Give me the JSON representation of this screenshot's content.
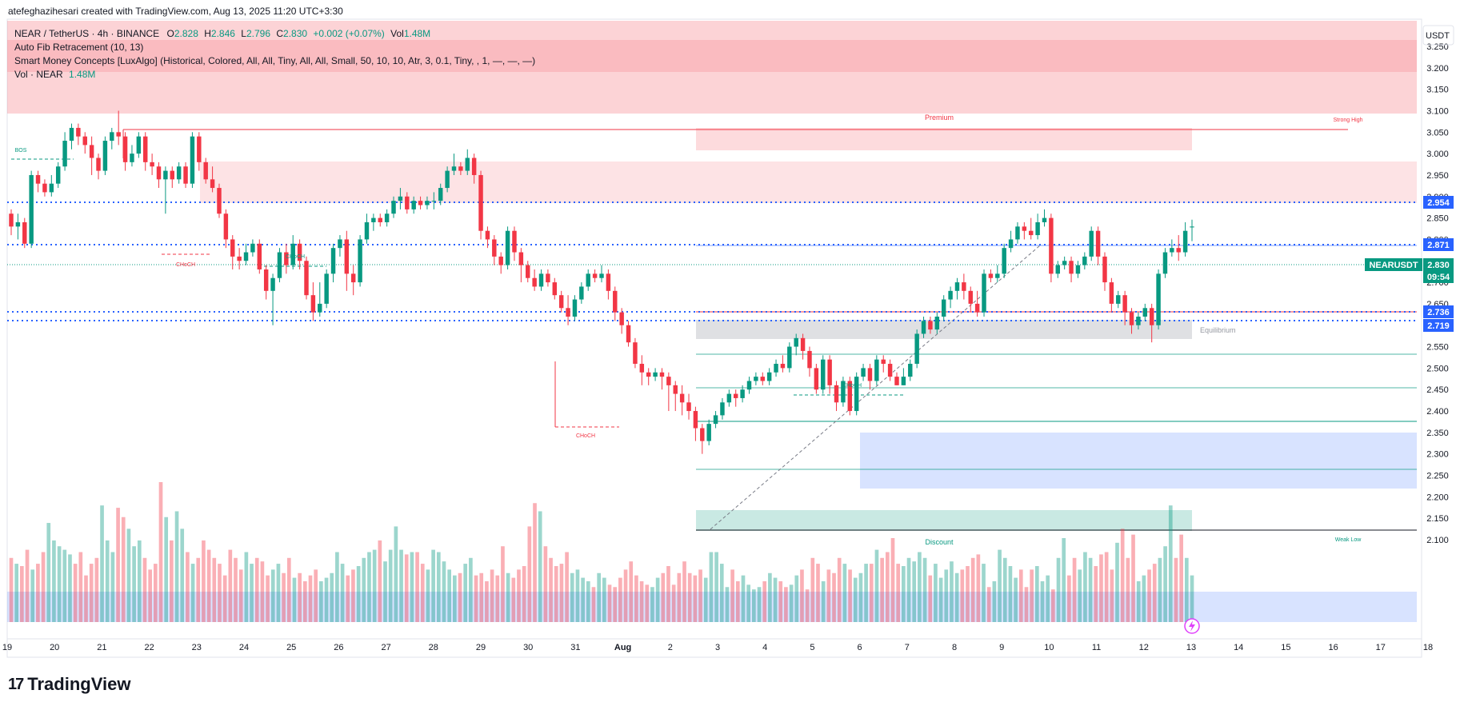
{
  "header": {
    "created_by": "atefeghazihesari created with TradingView.com, Aug 13, 2025 11:20 UTC+3:30"
  },
  "legend": {
    "symbol": "NEAR / TetherUS · 4h · BINANCE",
    "o_label": "O",
    "o": "2.828",
    "h_label": "H",
    "h": "2.846",
    "l_label": "L",
    "l": "2.796",
    "c_label": "C",
    "c": "2.830",
    "change": "+0.002 (+0.07%)",
    "vol_label": "Vol",
    "vol": "1.48M",
    "fib": "Auto Fib Retracement (10, 13)",
    "smc": "Smart Money Concepts [LuxAlgo] (Historical, Colored, All, All, Tiny, All, All, Small, 50, 10, 10, Atr, 3, 0.1, Tiny, , 1, —, —, —)",
    "vol_row_label": "Vol · NEAR",
    "vol_row_value": "1.48M"
  },
  "brand": {
    "name": "TradingView"
  },
  "colors": {
    "up": "#089981",
    "down": "#f23645",
    "accent": "#2962ff"
  },
  "chart_data": {
    "type": "candlestick",
    "quote_currency": "USDT",
    "symbol_tag": "NEARUSDT",
    "last_price": "2.830",
    "countdown": "09:54",
    "y_ticks": [
      "3.250",
      "3.200",
      "3.150",
      "3.100",
      "3.050",
      "3.000",
      "2.950",
      "2.900",
      "2.850",
      "2.800",
      "2.750",
      "2.700",
      "2.650",
      "2.600",
      "2.550",
      "2.500",
      "2.450",
      "2.400",
      "2.350",
      "2.300",
      "2.250",
      "2.200",
      "2.150",
      "2.100"
    ],
    "ylim": [
      2.09,
      3.28
    ],
    "x_ticks": [
      "19",
      "20",
      "21",
      "22",
      "23",
      "24",
      "25",
      "26",
      "27",
      "28",
      "29",
      "30",
      "31",
      "Aug",
      "2",
      "3",
      "4",
      "5",
      "6",
      "7",
      "8",
      "9",
      "10",
      "11",
      "12",
      "13",
      "14",
      "15",
      "16",
      "17",
      "18"
    ],
    "price_labels": [
      {
        "value": "2.954",
        "color": "#2962ff"
      },
      {
        "value": "2.871",
        "color": "#2962ff"
      },
      {
        "value": "2.736",
        "color": "#2962ff"
      },
      {
        "value": "2.719",
        "color": "#2962ff"
      }
    ],
    "annotations": [
      {
        "text": "Premium",
        "color": "#f23645"
      },
      {
        "text": "Strong High",
        "color": "#f23645"
      },
      {
        "text": "Equilibrium",
        "color": "#9598a1"
      },
      {
        "text": "Discount",
        "color": "#089981"
      },
      {
        "text": "Weak Low",
        "color": "#089981"
      },
      {
        "text": "BOS",
        "color": "#089981"
      },
      {
        "text": "CHoCH",
        "color": "#089981"
      },
      {
        "text": "CHoCH",
        "color": "#f23645"
      },
      {
        "text": "CHoCH",
        "color": "#f23645"
      },
      {
        "text": "CHoCH",
        "color": "#089981"
      }
    ],
    "candles": [
      [
        2.86,
        2.83,
        2.87,
        2.81
      ],
      [
        2.83,
        2.84,
        2.86,
        2.8
      ],
      [
        2.84,
        2.79,
        2.85,
        2.78
      ],
      [
        2.79,
        2.95,
        2.96,
        2.78
      ],
      [
        2.95,
        2.93,
        2.96,
        2.91
      ],
      [
        2.93,
        2.91,
        2.94,
        2.9
      ],
      [
        2.91,
        2.93,
        2.95,
        2.9
      ],
      [
        2.93,
        2.97,
        2.98,
        2.92
      ],
      [
        2.97,
        3.03,
        3.05,
        2.96
      ],
      [
        3.03,
        3.06,
        3.07,
        3.01
      ],
      [
        3.06,
        3.04,
        3.07,
        3.02
      ],
      [
        3.04,
        3.02,
        3.05,
        3.0
      ],
      [
        3.02,
        2.99,
        3.04,
        2.95
      ],
      [
        2.99,
        2.96,
        3.0,
        2.94
      ],
      [
        2.96,
        3.03,
        3.04,
        2.95
      ],
      [
        3.03,
        3.05,
        3.06,
        3.01
      ],
      [
        3.05,
        3.04,
        3.1,
        3.02
      ],
      [
        3.04,
        2.98,
        3.05,
        2.96
      ],
      [
        2.98,
        3.0,
        3.02,
        2.97
      ],
      [
        3.0,
        3.04,
        3.05,
        2.99
      ],
      [
        3.04,
        2.98,
        3.05,
        2.96
      ],
      [
        2.98,
        2.97,
        3.0,
        2.95
      ],
      [
        2.97,
        2.94,
        2.98,
        2.92
      ],
      [
        2.94,
        2.96,
        2.97,
        2.86
      ],
      [
        2.96,
        2.94,
        2.97,
        2.92
      ],
      [
        2.94,
        2.97,
        2.98,
        2.93
      ],
      [
        2.97,
        2.93,
        2.98,
        2.92
      ],
      [
        2.93,
        3.04,
        3.05,
        2.92
      ],
      [
        3.04,
        2.98,
        3.05,
        2.96
      ],
      [
        2.98,
        2.94,
        2.99,
        2.93
      ],
      [
        2.94,
        2.92,
        2.97,
        2.91
      ],
      [
        2.92,
        2.86,
        2.93,
        2.85
      ],
      [
        2.86,
        2.8,
        2.87,
        2.78
      ],
      [
        2.8,
        2.76,
        2.81,
        2.73
      ],
      [
        2.76,
        2.75,
        2.78,
        2.73
      ],
      [
        2.75,
        2.77,
        2.79,
        2.74
      ],
      [
        2.77,
        2.79,
        2.8,
        2.76
      ],
      [
        2.79,
        2.73,
        2.8,
        2.72
      ],
      [
        2.73,
        2.68,
        2.74,
        2.66
      ],
      [
        2.68,
        2.71,
        2.72,
        2.6
      ],
      [
        2.71,
        2.77,
        2.78,
        2.7
      ],
      [
        2.77,
        2.74,
        2.79,
        2.72
      ],
      [
        2.74,
        2.79,
        2.81,
        2.73
      ],
      [
        2.79,
        2.75,
        2.8,
        2.73
      ],
      [
        2.75,
        2.67,
        2.76,
        2.66
      ],
      [
        2.67,
        2.63,
        2.7,
        2.61
      ],
      [
        2.63,
        2.65,
        2.7,
        2.62
      ],
      [
        2.65,
        2.72,
        2.73,
        2.64
      ],
      [
        2.72,
        2.78,
        2.79,
        2.7
      ],
      [
        2.78,
        2.8,
        2.81,
        2.76
      ],
      [
        2.8,
        2.72,
        2.82,
        2.68
      ],
      [
        2.72,
        2.7,
        2.74,
        2.67
      ],
      [
        2.7,
        2.8,
        2.81,
        2.69
      ],
      [
        2.8,
        2.84,
        2.86,
        2.79
      ],
      [
        2.84,
        2.85,
        2.86,
        2.82
      ],
      [
        2.85,
        2.84,
        2.86,
        2.83
      ],
      [
        2.84,
        2.86,
        2.87,
        2.83
      ],
      [
        2.86,
        2.89,
        2.9,
        2.85
      ],
      [
        2.89,
        2.9,
        2.92,
        2.87
      ],
      [
        2.9,
        2.87,
        2.91,
        2.86
      ],
      [
        2.87,
        2.89,
        2.9,
        2.86
      ],
      [
        2.89,
        2.88,
        2.9,
        2.87
      ],
      [
        2.88,
        2.89,
        2.9,
        2.87
      ],
      [
        2.89,
        2.89,
        2.91,
        2.87
      ],
      [
        2.89,
        2.92,
        2.93,
        2.88
      ],
      [
        2.92,
        2.96,
        2.97,
        2.91
      ],
      [
        2.96,
        2.97,
        3.0,
        2.95
      ],
      [
        2.97,
        2.96,
        2.98,
        2.95
      ],
      [
        2.96,
        2.99,
        3.01,
        2.95
      ],
      [
        2.99,
        2.95,
        3.0,
        2.93
      ],
      [
        2.95,
        2.82,
        2.96,
        2.8
      ],
      [
        2.82,
        2.8,
        2.83,
        2.78
      ],
      [
        2.8,
        2.76,
        2.81,
        2.74
      ],
      [
        2.76,
        2.74,
        2.77,
        2.72
      ],
      [
        2.74,
        2.82,
        2.83,
        2.73
      ],
      [
        2.82,
        2.77,
        2.83,
        2.75
      ],
      [
        2.77,
        2.74,
        2.78,
        2.7
      ],
      [
        2.74,
        2.71,
        2.75,
        2.7
      ],
      [
        2.71,
        2.69,
        2.73,
        2.68
      ],
      [
        2.69,
        2.72,
        2.73,
        2.68
      ],
      [
        2.72,
        2.7,
        2.73,
        2.69
      ],
      [
        2.7,
        2.67,
        2.71,
        2.66
      ],
      [
        2.67,
        2.64,
        2.68,
        2.63
      ],
      [
        2.64,
        2.62,
        2.67,
        2.6
      ],
      [
        2.62,
        2.66,
        2.67,
        2.61
      ],
      [
        2.66,
        2.69,
        2.7,
        2.65
      ],
      [
        2.69,
        2.72,
        2.73,
        2.68
      ],
      [
        2.72,
        2.71,
        2.73,
        2.7
      ],
      [
        2.71,
        2.72,
        2.74,
        2.7
      ],
      [
        2.72,
        2.68,
        2.73,
        2.66
      ],
      [
        2.68,
        2.63,
        2.69,
        2.61
      ],
      [
        2.63,
        2.6,
        2.64,
        2.58
      ],
      [
        2.6,
        2.56,
        2.61,
        2.55
      ],
      [
        2.56,
        2.51,
        2.57,
        2.5
      ],
      [
        2.51,
        2.49,
        2.53,
        2.46
      ],
      [
        2.49,
        2.48,
        2.5,
        2.46
      ],
      [
        2.48,
        2.49,
        2.5,
        2.47
      ],
      [
        2.49,
        2.48,
        2.5,
        2.45
      ],
      [
        2.48,
        2.46,
        2.49,
        2.4
      ],
      [
        2.46,
        2.44,
        2.47,
        2.4
      ],
      [
        2.44,
        2.42,
        2.46,
        2.39
      ],
      [
        2.42,
        2.4,
        2.44,
        2.38
      ],
      [
        2.4,
        2.36,
        2.41,
        2.33
      ],
      [
        2.36,
        2.33,
        2.37,
        2.3
      ],
      [
        2.33,
        2.37,
        2.38,
        2.32
      ],
      [
        2.37,
        2.39,
        2.4,
        2.36
      ],
      [
        2.39,
        2.42,
        2.43,
        2.38
      ],
      [
        2.42,
        2.44,
        2.45,
        2.41
      ],
      [
        2.44,
        2.43,
        2.45,
        2.41
      ],
      [
        2.43,
        2.45,
        2.46,
        2.42
      ],
      [
        2.45,
        2.47,
        2.48,
        2.44
      ],
      [
        2.47,
        2.48,
        2.49,
        2.46
      ],
      [
        2.48,
        2.47,
        2.49,
        2.46
      ],
      [
        2.47,
        2.49,
        2.5,
        2.46
      ],
      [
        2.49,
        2.51,
        2.52,
        2.48
      ],
      [
        2.51,
        2.5,
        2.53,
        2.49
      ],
      [
        2.5,
        2.55,
        2.56,
        2.49
      ],
      [
        2.55,
        2.57,
        2.58,
        2.53
      ],
      [
        2.57,
        2.54,
        2.58,
        2.52
      ],
      [
        2.54,
        2.5,
        2.55,
        2.48
      ],
      [
        2.5,
        2.45,
        2.51,
        2.44
      ],
      [
        2.45,
        2.52,
        2.53,
        2.44
      ],
      [
        2.52,
        2.46,
        2.53,
        2.44
      ],
      [
        2.46,
        2.42,
        2.47,
        2.4
      ],
      [
        2.42,
        2.47,
        2.48,
        2.41
      ],
      [
        2.47,
        2.4,
        2.48,
        2.39
      ],
      [
        2.4,
        2.48,
        2.49,
        2.39
      ],
      [
        2.48,
        2.5,
        2.51,
        2.47
      ],
      [
        2.5,
        2.47,
        2.51,
        2.45
      ],
      [
        2.47,
        2.52,
        2.53,
        2.46
      ],
      [
        2.52,
        2.51,
        2.53,
        2.49
      ],
      [
        2.51,
        2.48,
        2.52,
        2.47
      ],
      [
        2.48,
        2.46,
        2.49,
        2.46
      ],
      [
        2.46,
        2.48,
        2.5,
        2.46
      ],
      [
        2.48,
        2.51,
        2.52,
        2.47
      ],
      [
        2.51,
        2.58,
        2.59,
        2.5
      ],
      [
        2.58,
        2.61,
        2.62,
        2.57
      ],
      [
        2.61,
        2.59,
        2.62,
        2.58
      ],
      [
        2.59,
        2.62,
        2.63,
        2.58
      ],
      [
        2.62,
        2.66,
        2.67,
        2.61
      ],
      [
        2.66,
        2.68,
        2.69,
        2.64
      ],
      [
        2.68,
        2.7,
        2.71,
        2.66
      ],
      [
        2.7,
        2.68,
        2.72,
        2.66
      ],
      [
        2.68,
        2.65,
        2.69,
        2.63
      ],
      [
        2.65,
        2.63,
        2.68,
        2.62
      ],
      [
        2.63,
        2.72,
        2.73,
        2.62
      ],
      [
        2.72,
        2.71,
        2.73,
        2.7
      ],
      [
        2.71,
        2.72,
        2.74,
        2.7
      ],
      [
        2.72,
        2.78,
        2.79,
        2.71
      ],
      [
        2.78,
        2.8,
        2.82,
        2.77
      ],
      [
        2.8,
        2.83,
        2.84,
        2.79
      ],
      [
        2.83,
        2.82,
        2.84,
        2.8
      ],
      [
        2.82,
        2.81,
        2.85,
        2.8
      ],
      [
        2.81,
        2.84,
        2.86,
        2.8
      ],
      [
        2.84,
        2.85,
        2.87,
        2.83
      ],
      [
        2.85,
        2.72,
        2.86,
        2.7
      ],
      [
        2.72,
        2.74,
        2.75,
        2.71
      ],
      [
        2.74,
        2.75,
        2.76,
        2.73
      ],
      [
        2.75,
        2.72,
        2.76,
        2.7
      ],
      [
        2.72,
        2.74,
        2.75,
        2.71
      ],
      [
        2.74,
        2.76,
        2.77,
        2.73
      ],
      [
        2.76,
        2.82,
        2.83,
        2.75
      ],
      [
        2.82,
        2.76,
        2.83,
        2.74
      ],
      [
        2.76,
        2.7,
        2.77,
        2.68
      ],
      [
        2.7,
        2.65,
        2.71,
        2.63
      ],
      [
        2.65,
        2.67,
        2.68,
        2.64
      ],
      [
        2.67,
        2.63,
        2.68,
        2.6
      ],
      [
        2.63,
        2.6,
        2.64,
        2.58
      ],
      [
        2.6,
        2.62,
        2.63,
        2.59
      ],
      [
        2.62,
        2.64,
        2.65,
        2.61
      ],
      [
        2.64,
        2.6,
        2.65,
        2.56
      ],
      [
        2.6,
        2.72,
        2.73,
        2.59
      ],
      [
        2.72,
        2.77,
        2.78,
        2.71
      ],
      [
        2.77,
        2.78,
        2.8,
        2.76
      ],
      [
        2.78,
        2.77,
        2.81,
        2.75
      ],
      [
        2.77,
        2.82,
        2.84,
        2.76
      ],
      [
        2.828,
        2.83,
        2.846,
        2.796
      ]
    ],
    "volume": [
      0.55,
      0.5,
      0.48,
      0.62,
      0.45,
      0.5,
      0.6,
      0.85,
      0.7,
      0.65,
      0.62,
      0.58,
      0.5,
      0.6,
      0.4,
      0.5,
      0.55,
      1.0,
      0.7,
      0.6,
      0.98,
      0.9,
      0.8,
      0.65,
      0.7,
      0.55,
      0.45,
      0.5,
      1.2,
      0.9,
      0.7,
      0.95,
      0.8,
      0.6,
      0.5,
      0.55,
      0.7,
      0.62,
      0.55,
      0.5,
      0.4,
      0.62,
      0.55,
      0.45,
      0.6,
      0.5,
      0.55,
      0.52,
      0.4,
      0.45,
      0.5,
      0.42,
      0.55,
      0.38,
      0.42,
      0.35,
      0.4,
      0.45,
      0.35,
      0.38,
      0.42,
      0.6,
      0.5,
      0.4,
      0.45,
      0.48,
      0.55,
      0.6,
      0.62,
      0.7,
      0.52,
      0.62,
      0.82,
      0.62,
      0.58,
      0.6,
      0.6,
      0.5,
      0.45,
      0.62,
      0.6,
      0.52,
      0.45,
      0.4,
      0.42,
      0.5,
      0.55,
      0.4,
      0.42,
      0.35,
      0.45,
      0.4,
      0.65,
      0.42,
      0.38,
      0.45,
      0.48,
      0.82,
      1.02,
      0.95,
      0.65,
      0.55,
      0.48,
      0.5,
      0.6,
      0.42,
      0.45,
      0.38,
      0.35,
      0.3,
      0.42,
      0.38,
      0.32,
      0.3,
      0.38,
      0.45,
      0.52,
      0.4,
      0.35,
      0.32,
      0.3,
      0.38,
      0.42,
      0.48,
      0.32,
      0.42,
      0.52,
      0.42,
      0.4,
      0.45,
      0.38,
      0.6,
      0.6,
      0.5,
      0.3,
      0.45,
      0.35,
      0.4,
      0.32,
      0.28,
      0.3,
      0.35,
      0.42,
      0.38,
      0.35,
      0.3,
      0.32,
      0.4,
      0.45,
      0.28,
      0.55,
      0.5,
      0.35,
      0.45,
      0.42,
      0.55,
      0.5,
      0.45,
      0.38,
      0.42,
      0.5,
      0.5,
      0.62,
      0.55,
      0.6,
      0.72,
      0.5,
      0.48,
      0.55,
      0.52,
      0.6,
      0.55,
      0.4,
      0.5,
      0.38,
      0.45,
      0.52,
      0.42,
      0.45,
      0.48,
      0.55,
      0.58,
      0.5,
      0.3,
      0.35,
      0.62,
      0.55,
      0.48,
      0.38,
      0.45,
      0.3,
      0.45,
      0.48,
      0.35,
      0.4,
      0.28,
      0.55,
      0.72,
      0.4,
      0.55,
      0.45,
      0.6,
      0.55,
      0.48,
      0.58,
      0.6,
      0.45,
      0.68,
      0.8,
      0.55,
      0.75,
      0.35,
      0.4,
      0.45,
      0.5,
      0.55,
      0.65,
      1.0,
      0.55,
      0.75,
      0.55,
      0.4
    ]
  }
}
